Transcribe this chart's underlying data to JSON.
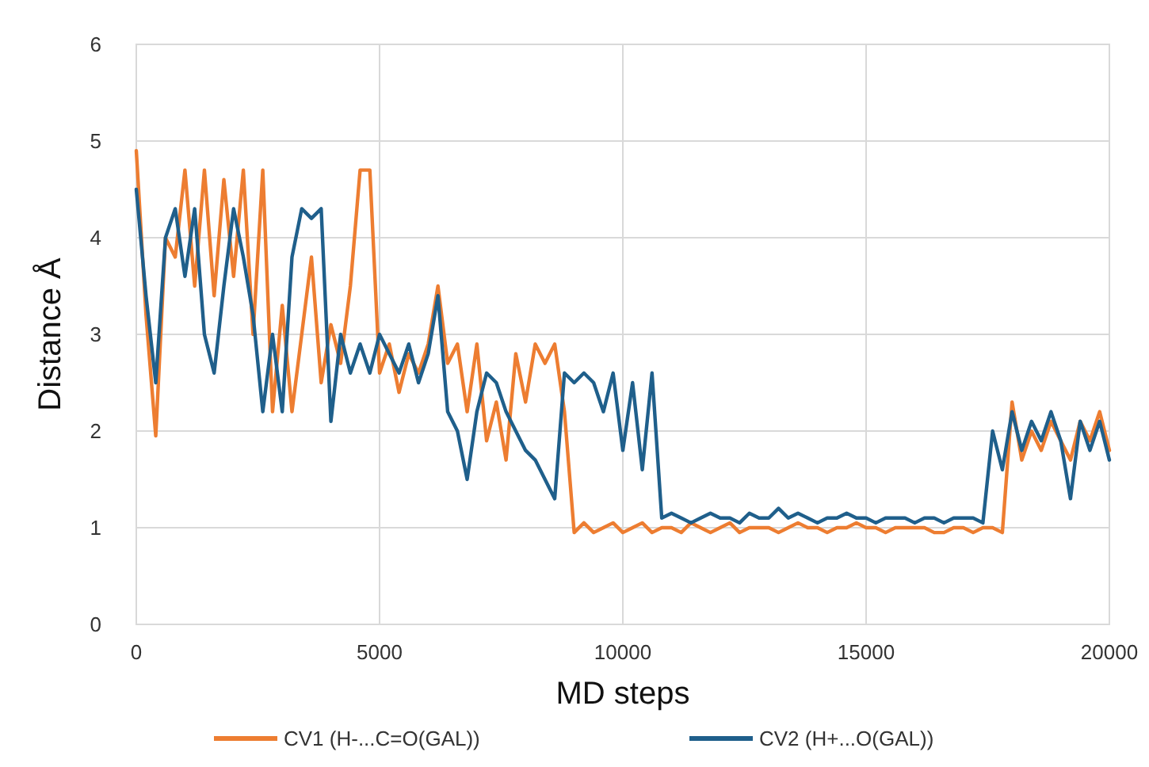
{
  "chart_data": {
    "type": "line",
    "xlabel": "MD steps",
    "ylabel": "Distance Å",
    "xlim": [
      0,
      20000
    ],
    "xticks": [
      0,
      5000,
      10000,
      15000,
      20000
    ],
    "ylim": [
      0,
      6
    ],
    "yticks": [
      0,
      1,
      2,
      3,
      4,
      5,
      6
    ],
    "grid": true,
    "legend": "bottom",
    "marker": "none",
    "line_style": "solid",
    "x": [
      0,
      200,
      400,
      600,
      800,
      1000,
      1200,
      1400,
      1600,
      1800,
      2000,
      2200,
      2400,
      2600,
      2800,
      3000,
      3200,
      3400,
      3600,
      3800,
      4000,
      4200,
      4400,
      4600,
      4800,
      5000,
      5200,
      5400,
      5600,
      5800,
      6000,
      6200,
      6400,
      6600,
      6800,
      7000,
      7200,
      7400,
      7600,
      7800,
      8000,
      8200,
      8400,
      8600,
      8800,
      9000,
      9200,
      9400,
      9600,
      9800,
      10000,
      10200,
      10400,
      10600,
      10800,
      11000,
      11200,
      11400,
      11600,
      11800,
      12000,
      12200,
      12400,
      12600,
      12800,
      13000,
      13200,
      13400,
      13600,
      13800,
      14000,
      14200,
      14400,
      14600,
      14800,
      15000,
      15200,
      15400,
      15600,
      15800,
      16000,
      16200,
      16400,
      16600,
      16800,
      17000,
      17200,
      17400,
      17600,
      17800,
      18000,
      18200,
      18400,
      18600,
      18800,
      19000,
      19200,
      19400,
      19600,
      19800,
      20000
    ],
    "series": [
      {
        "name": "CV1 (H-...C=O(GAL))",
        "color": "#ed7d31",
        "values": [
          4.9,
          3.2,
          1.95,
          4.0,
          3.8,
          4.7,
          3.5,
          4.7,
          3.4,
          4.6,
          3.6,
          4.7,
          3.0,
          4.7,
          2.2,
          3.3,
          2.2,
          3.0,
          3.8,
          2.5,
          3.1,
          2.7,
          3.5,
          4.7,
          4.7,
          2.6,
          2.9,
          2.4,
          2.8,
          2.6,
          2.9,
          3.5,
          2.7,
          2.9,
          2.2,
          2.9,
          1.9,
          2.3,
          1.7,
          2.8,
          2.3,
          2.9,
          2.7,
          2.9,
          2.2,
          0.95,
          1.05,
          0.95,
          1.0,
          1.05,
          0.95,
          1.0,
          1.05,
          0.95,
          1.0,
          1.0,
          0.95,
          1.05,
          1.0,
          0.95,
          1.0,
          1.05,
          0.95,
          1.0,
          1.0,
          1.0,
          0.95,
          1.0,
          1.05,
          1.0,
          1.0,
          0.95,
          1.0,
          1.0,
          1.05,
          1.0,
          1.0,
          0.95,
          1.0,
          1.0,
          1.0,
          1.0,
          0.95,
          0.95,
          1.0,
          1.0,
          0.95,
          1.0,
          1.0,
          0.95,
          2.3,
          1.7,
          2.0,
          1.8,
          2.1,
          1.9,
          1.7,
          2.1,
          1.9,
          2.2,
          1.8
        ]
      },
      {
        "name": "CV2 (H+...O(GAL))",
        "color": "#1f5f8b",
        "values": [
          4.5,
          3.4,
          2.5,
          4.0,
          4.3,
          3.6,
          4.3,
          3.0,
          2.6,
          3.5,
          4.3,
          3.8,
          3.2,
          2.2,
          3.0,
          2.2,
          3.8,
          4.3,
          4.2,
          4.3,
          2.1,
          3.0,
          2.6,
          2.9,
          2.6,
          3.0,
          2.8,
          2.6,
          2.9,
          2.5,
          2.8,
          3.4,
          2.2,
          2.0,
          1.5,
          2.2,
          2.6,
          2.5,
          2.2,
          2.0,
          1.8,
          1.7,
          1.5,
          1.3,
          2.6,
          2.5,
          2.6,
          2.5,
          2.2,
          2.6,
          1.8,
          2.5,
          1.6,
          2.6,
          1.1,
          1.15,
          1.1,
          1.05,
          1.1,
          1.15,
          1.1,
          1.1,
          1.05,
          1.15,
          1.1,
          1.1,
          1.2,
          1.1,
          1.15,
          1.1,
          1.05,
          1.1,
          1.1,
          1.15,
          1.1,
          1.1,
          1.05,
          1.1,
          1.1,
          1.1,
          1.05,
          1.1,
          1.1,
          1.05,
          1.1,
          1.1,
          1.1,
          1.05,
          2.0,
          1.6,
          2.2,
          1.8,
          2.1,
          1.9,
          2.2,
          1.9,
          1.3,
          2.1,
          1.8,
          2.1,
          1.7
        ]
      }
    ]
  }
}
